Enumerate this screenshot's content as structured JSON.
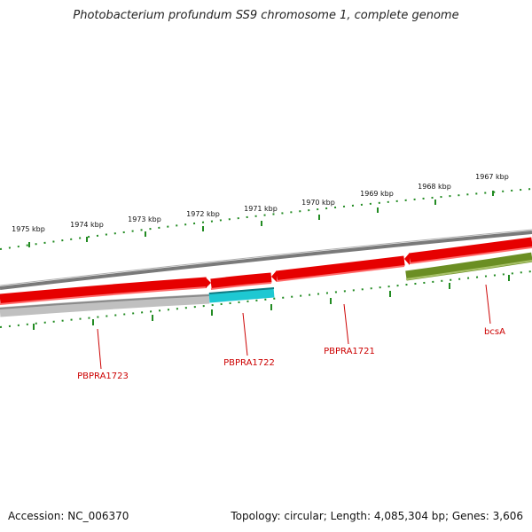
{
  "title": "Photobacterium profundum SS9 chromosome 1, complete genome",
  "footer": {
    "accession": "Accession: NC_006370",
    "summary": "Topology: circular; Length: 4,085,304 bp; Genes: 3,606"
  },
  "scale": {
    "ticks": [
      "1975 kbp",
      "1974 kbp",
      "1973 kbp",
      "1972 kbp",
      "1971 kbp",
      "1970 kbp",
      "1969 kbp",
      "1968 kbp",
      "1967 kbp"
    ],
    "tick_color": "#228b22"
  },
  "genes": [
    {
      "name": "PBPRA1723",
      "strand": "reverse",
      "color": "#c0c0c0"
    },
    {
      "name": "PBPRA1722",
      "strand": "reverse",
      "color": "#1ec8d2"
    },
    {
      "name": "PBPRA1721",
      "strand": "forward",
      "color": "#e60000"
    },
    {
      "name": "bcsA",
      "strand": "reverse",
      "color": "#6b8e23"
    }
  ],
  "colors": {
    "backbone": "#8a8a8a",
    "forward_feature": "#e60000",
    "gene_label": "#cc0000"
  }
}
